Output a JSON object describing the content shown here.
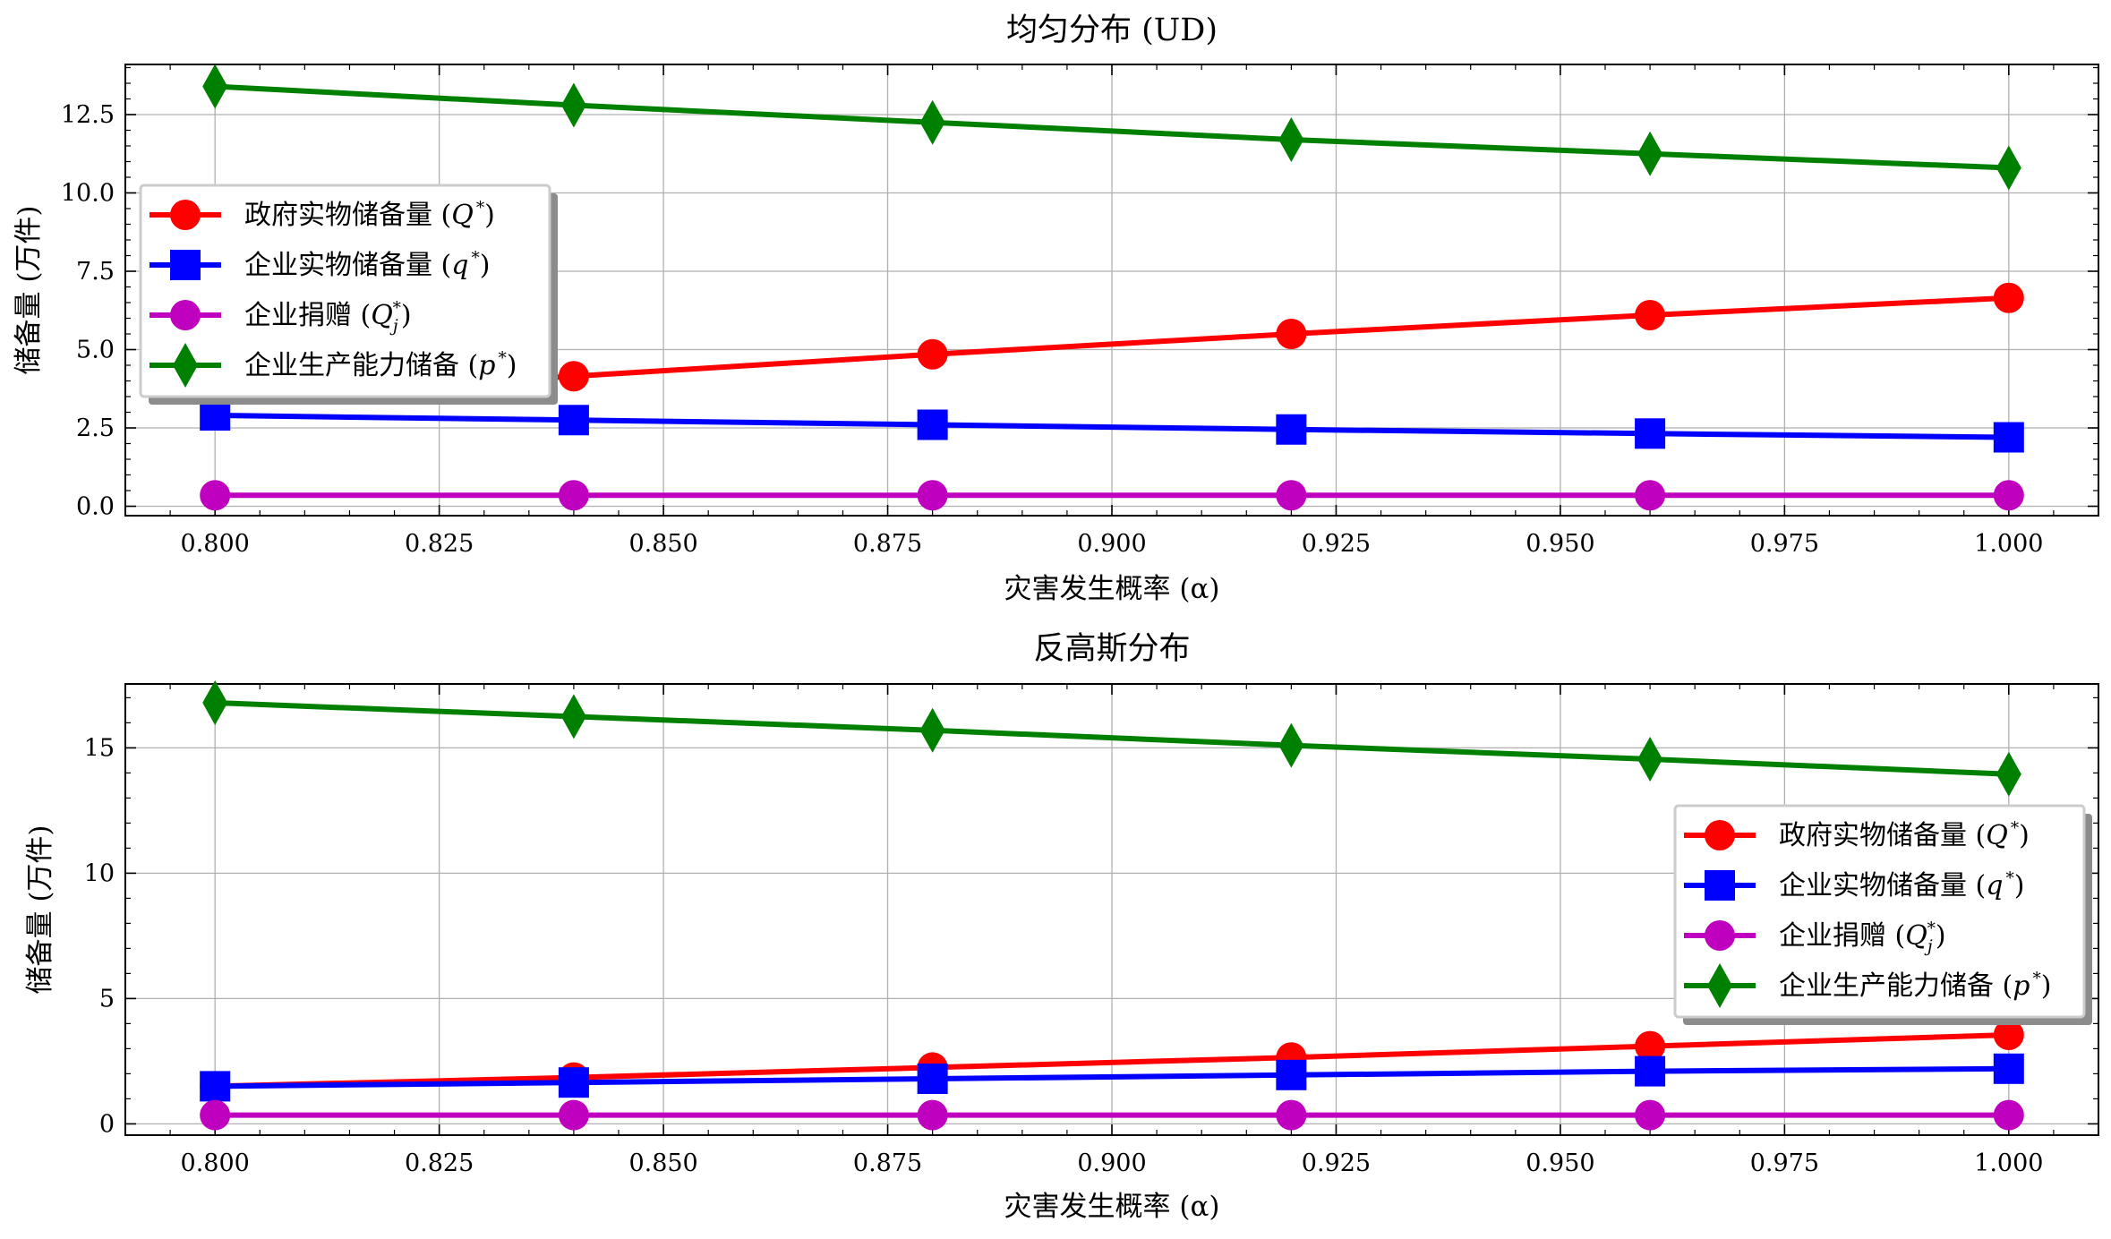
{
  "chart_data": [
    {
      "type": "line",
      "title": "均匀分布 (UD)",
      "xlabel": "灾害发生概率 (α)",
      "ylabel": "储备量 (万件)",
      "x": [
        0.8,
        0.84,
        0.88,
        0.92,
        0.96,
        1.0
      ],
      "xlim": [
        0.79,
        1.01
      ],
      "ylim": [
        -0.3,
        14.1
      ],
      "xticks": [
        0.8,
        0.825,
        0.85,
        0.875,
        0.9,
        0.925,
        0.95,
        0.975,
        1.0
      ],
      "xtick_labels": [
        "0.800",
        "0.825",
        "0.850",
        "0.875",
        "0.900",
        "0.925",
        "0.950",
        "0.975",
        "1.000"
      ],
      "yticks": [
        0.0,
        2.5,
        5.0,
        7.5,
        10.0,
        12.5
      ],
      "ytick_labels": [
        "0.0",
        "2.5",
        "5.0",
        "7.5",
        "10.0",
        "12.5"
      ],
      "grid": true,
      "legend_position": "upper-left",
      "series": [
        {
          "name": "政府实物储备量 (Q*)",
          "color": "#ff0000",
          "marker": "circle",
          "values": [
            3.45,
            4.15,
            4.85,
            5.5,
            6.1,
            6.65
          ]
        },
        {
          "name": "企业实物储备量 (q*)",
          "color": "#0000ff",
          "marker": "square",
          "values": [
            2.9,
            2.75,
            2.6,
            2.45,
            2.32,
            2.2
          ]
        },
        {
          "name": "企业捐赠 (Qj*)",
          "color": "#bf00bf",
          "marker": "circle",
          "values": [
            0.35,
            0.35,
            0.35,
            0.35,
            0.35,
            0.35
          ]
        },
        {
          "name": "企业生产能力储备 (p*)",
          "color": "#008000",
          "marker": "thin_diamond",
          "values": [
            13.4,
            12.8,
            12.25,
            11.7,
            11.25,
            10.8
          ]
        }
      ]
    },
    {
      "type": "line",
      "title": "反高斯分布",
      "xlabel": "灾害发生概率 (α)",
      "ylabel": "储备量 (万件)",
      "x": [
        0.8,
        0.84,
        0.88,
        0.92,
        0.96,
        1.0
      ],
      "xlim": [
        0.79,
        1.01
      ],
      "ylim": [
        -0.45,
        17.55
      ],
      "xticks": [
        0.8,
        0.825,
        0.85,
        0.875,
        0.9,
        0.925,
        0.95,
        0.975,
        1.0
      ],
      "xtick_labels": [
        "0.800",
        "0.825",
        "0.850",
        "0.875",
        "0.900",
        "0.925",
        "0.950",
        "0.975",
        "1.000"
      ],
      "yticks": [
        0,
        5,
        10,
        15
      ],
      "ytick_labels": [
        "0",
        "5",
        "10",
        "15"
      ],
      "grid": true,
      "legend_position": "center-right",
      "series": [
        {
          "name": "政府实物储备量 (Q*)",
          "color": "#ff0000",
          "marker": "circle",
          "values": [
            1.5,
            1.85,
            2.25,
            2.65,
            3.1,
            3.55
          ]
        },
        {
          "name": "企业实物储备量 (q*)",
          "color": "#0000ff",
          "marker": "square",
          "values": [
            1.5,
            1.65,
            1.8,
            1.95,
            2.1,
            2.2
          ]
        },
        {
          "name": "企业捐赠 (Qj*)",
          "color": "#bf00bf",
          "marker": "circle",
          "values": [
            0.35,
            0.35,
            0.35,
            0.35,
            0.35,
            0.35
          ]
        },
        {
          "name": "企业生产能力储备 (p*)",
          "color": "#008000",
          "marker": "thin_diamond",
          "values": [
            16.8,
            16.25,
            15.7,
            15.1,
            14.55,
            13.95
          ]
        }
      ]
    }
  ],
  "legend_labels": [
    {
      "base": "政府实物储备量 (",
      "sym": "Q",
      "sup": "*",
      "sub": "",
      "close": ")"
    },
    {
      "base": "企业实物储备量 (",
      "sym": "q",
      "sup": "*",
      "sub": "",
      "close": ")"
    },
    {
      "base": "企业捐赠 (",
      "sym": "Q",
      "sup": "*",
      "sub": "j",
      "close": ")"
    },
    {
      "base": "企业生产能力储备 (",
      "sym": "p",
      "sup": "*",
      "sub": "",
      "close": ")"
    }
  ]
}
